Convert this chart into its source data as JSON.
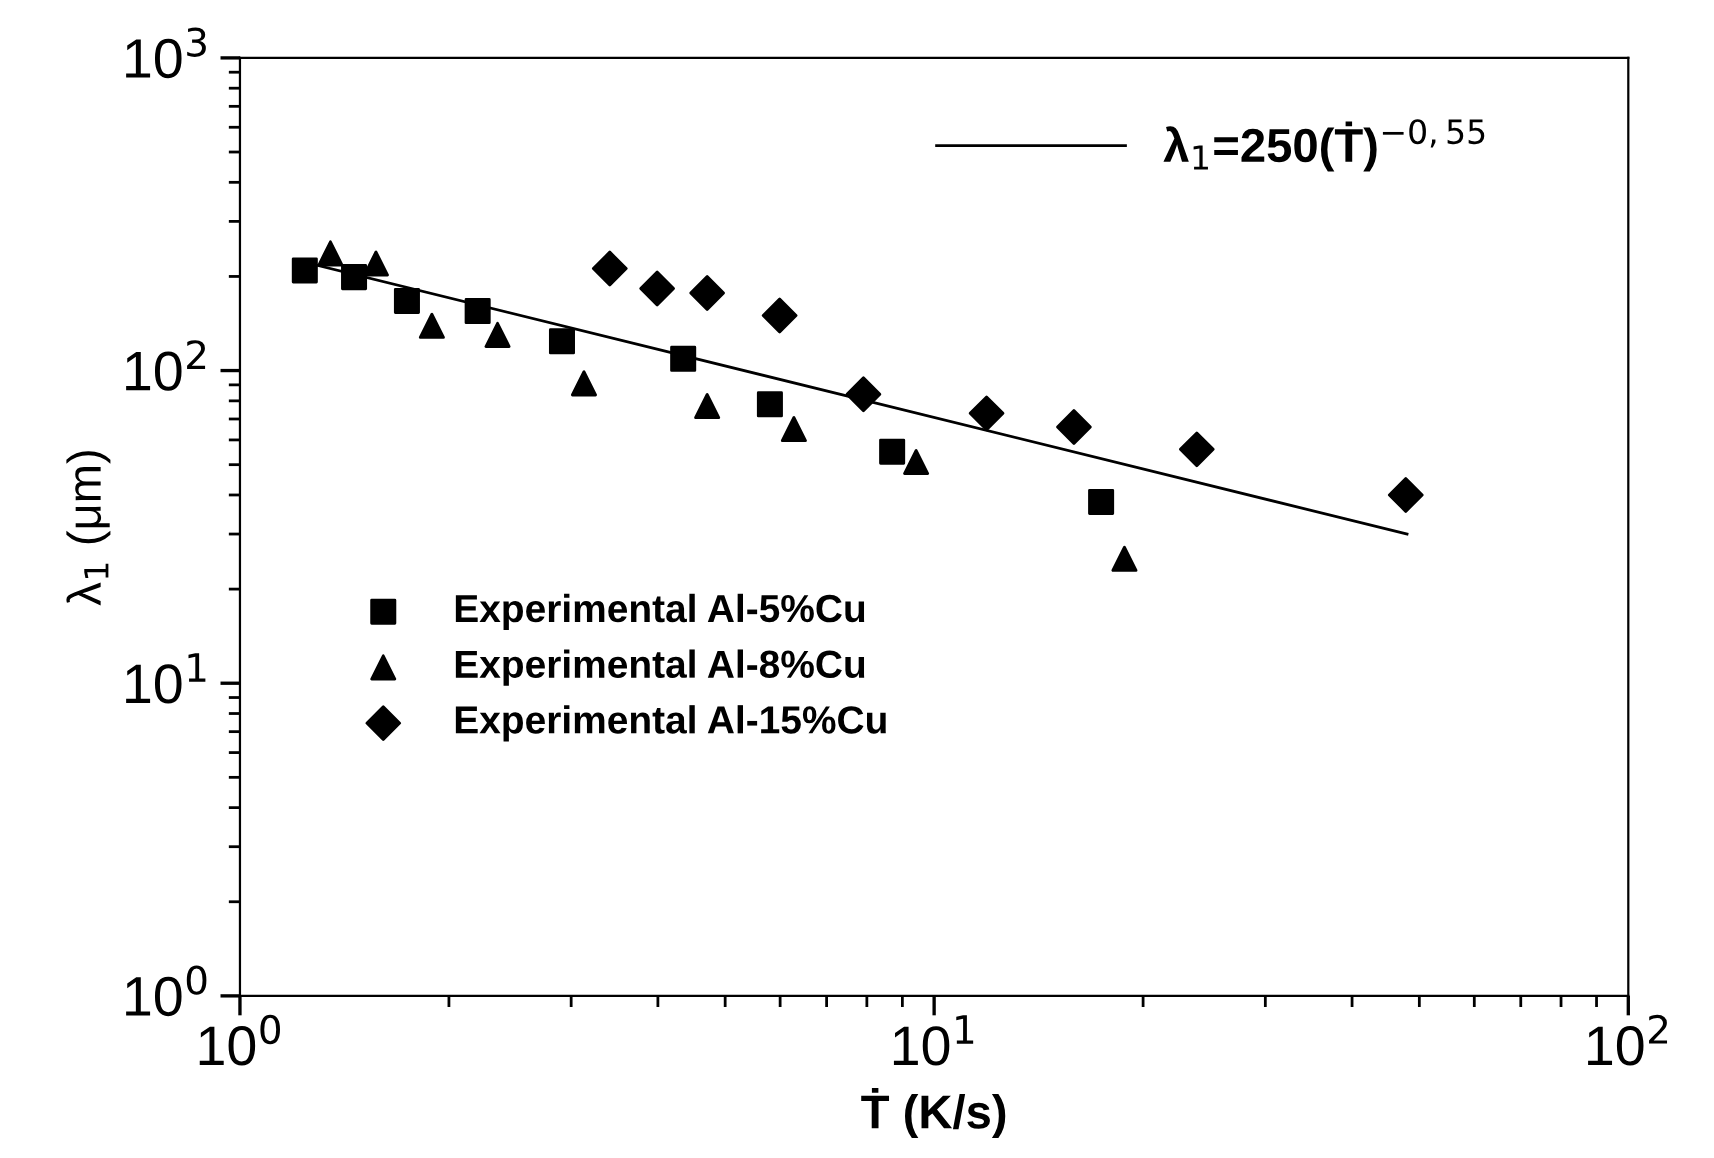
{
  "chart_data": {
    "type": "scatter",
    "xlabel": "Ṫ (K/s)",
    "ylabel": "λ$_{1}$ (μm)",
    "log": "xy",
    "xlim": [
      1,
      100
    ],
    "ylim": [
      1,
      1000
    ],
    "xticks": [
      {
        "value": 1,
        "label": "10$^{0}$"
      },
      {
        "value": 10,
        "label": "10$^{1}$"
      },
      {
        "value": 100,
        "label": "10$^{2}$"
      }
    ],
    "yticks": [
      {
        "value": 1,
        "label": "10$^{0}$"
      },
      {
        "value": 10,
        "label": "10$^{1}$"
      },
      {
        "value": 100,
        "label": "10$^{2}$"
      },
      {
        "value": 1000,
        "label": "10$^{3}$"
      }
    ],
    "grid": false,
    "legend": "left",
    "series": [
      {
        "name": "Experimental Al-5%Cu",
        "color": "#000000",
        "marker": "square",
        "x": [
          1.24,
          1.46,
          1.74,
          2.2,
          2.91,
          4.35,
          5.8,
          8.7,
          17.4
        ],
        "values": [
          209,
          199,
          167,
          155,
          124,
          109,
          78,
          55,
          38
        ]
      },
      {
        "name": "Experimental Al-8%Cu",
        "color": "#000000",
        "marker": "triangle",
        "x": [
          1.35,
          1.57,
          1.89,
          2.35,
          3.13,
          4.71,
          6.28,
          9.42,
          18.8
        ],
        "values": [
          237,
          220,
          139,
          130,
          91,
          77,
          65,
          51,
          25
        ]
      },
      {
        "name": "Experimental Al-15%Cu",
        "color": "#000000",
        "marker": "diamond",
        "x": [
          3.41,
          3.99,
          4.71,
          5.99,
          7.91,
          11.9,
          15.9,
          23.9,
          47.8
        ],
        "values": [
          212,
          183,
          177,
          150,
          84,
          73,
          66,
          56,
          40
        ]
      },
      {
        "name": "λ$_{1}$=250(Ṫ)$^{−0,55}$",
        "type": "line",
        "color": "#000000",
        "line_style": "solid",
        "marker": "none",
        "x": [
          1.2,
          48
        ],
        "values": [
          226,
          30
        ]
      }
    ]
  }
}
